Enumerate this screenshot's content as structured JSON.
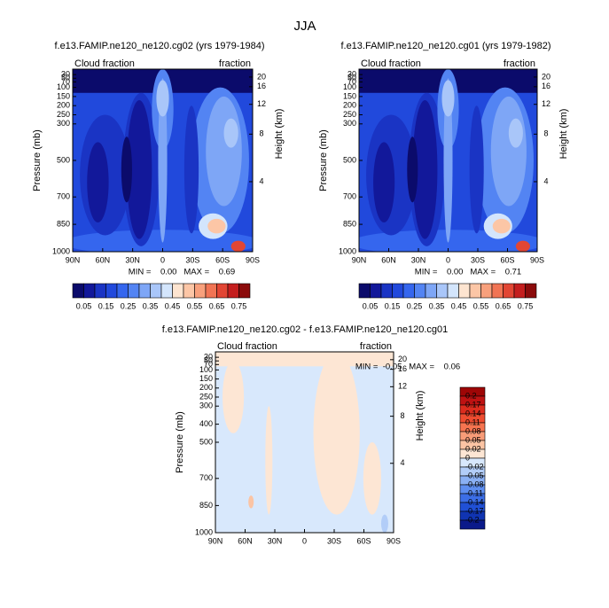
{
  "title": "JJA",
  "chart_data": [
    {
      "type": "contour",
      "title": "f.e13.FAMIP.ne120_ne120.cg02 (yrs 1979-1984)",
      "left_label": "Cloud fraction",
      "right_label": "fraction",
      "ylabel": "Pressure (mb)",
      "y2label": "Height (km)",
      "xlim": [
        90,
        -90
      ],
      "xticks": [
        {
          "value": 90,
          "label": "90N"
        },
        {
          "value": 60,
          "label": "60N"
        },
        {
          "value": 30,
          "label": "30N"
        },
        0,
        {
          "value": -30,
          "label": "30S"
        },
        {
          "value": -60,
          "label": "60S"
        },
        {
          "value": -90,
          "label": "90S"
        }
      ],
      "ylim": [
        1000,
        0
      ],
      "yticks": [
        30,
        50,
        70,
        100,
        150,
        200,
        250,
        300,
        500,
        700,
        850,
        1000
      ],
      "y2ticks": [
        4,
        8,
        12,
        16,
        20
      ],
      "stats": "MIN =    0.00   MAX =    0.69",
      "colorbar": {
        "orientation": "horizontal",
        "lim": [
          0,
          0.8
        ],
        "colors": [
          "#0b0b6b",
          "#12189a",
          "#1a34c4",
          "#2149dc",
          "#3566ee",
          "#5384f3",
          "#7ea6f6",
          "#a9c6f9",
          "#d3e5fc",
          "#fde4d0",
          "#fcc6a6",
          "#f8a07c",
          "#f17454",
          "#e24634",
          "#c41e1e",
          "#8b0b0b"
        ],
        "ticks": [
          0.05,
          0.15,
          0.25,
          0.35,
          0.45,
          0.55,
          0.65,
          0.75
        ]
      }
    },
    {
      "type": "contour",
      "title": "f.e13.FAMIP.ne120_ne120.cg01 (yrs 1979-1982)",
      "left_label": "Cloud fraction",
      "right_label": "fraction",
      "ylabel": "Pressure (mb)",
      "y2label": "Height (km)",
      "xlim": [
        90,
        -90
      ],
      "xticks": [
        {
          "value": 90,
          "label": "90N"
        },
        {
          "value": 60,
          "label": "60N"
        },
        {
          "value": 30,
          "label": "30N"
        },
        0,
        {
          "value": -30,
          "label": "30S"
        },
        {
          "value": -60,
          "label": "60S"
        },
        {
          "value": -90,
          "label": "90S"
        }
      ],
      "ylim": [
        1000,
        0
      ],
      "yticks": [
        30,
        50,
        70,
        100,
        150,
        200,
        250,
        300,
        500,
        700,
        850,
        1000
      ],
      "y2ticks": [
        4,
        8,
        12,
        16,
        20
      ],
      "stats": "MIN =    0.00   MAX =    0.71",
      "colorbar": {
        "orientation": "horizontal",
        "lim": [
          0,
          0.8
        ],
        "colors": [
          "#0b0b6b",
          "#12189a",
          "#1a34c4",
          "#2149dc",
          "#3566ee",
          "#5384f3",
          "#7ea6f6",
          "#a9c6f9",
          "#d3e5fc",
          "#fde4d0",
          "#fcc6a6",
          "#f8a07c",
          "#f17454",
          "#e24634",
          "#c41e1e",
          "#8b0b0b"
        ],
        "ticks": [
          0.05,
          0.15,
          0.25,
          0.35,
          0.45,
          0.55,
          0.65,
          0.75
        ]
      }
    },
    {
      "type": "contour",
      "title": "f.e13.FAMIP.ne120_ne120.cg02 - f.e13.FAMIP.ne120_ne120.cg01",
      "left_label": "Cloud fraction",
      "right_label": "fraction",
      "ylabel": "Pressure (mb)",
      "y2label": "Height (km)",
      "xlim": [
        90,
        -90
      ],
      "xticks": [
        {
          "value": 90,
          "label": "90N"
        },
        {
          "value": 60,
          "label": "60N"
        },
        {
          "value": 30,
          "label": "30N"
        },
        0,
        {
          "value": -30,
          "label": "30S"
        },
        {
          "value": -60,
          "label": "60S"
        },
        {
          "value": -90,
          "label": "90S"
        }
      ],
      "ylim": [
        1000,
        0
      ],
      "yticks": [
        30,
        50,
        70,
        100,
        150,
        200,
        250,
        300,
        400,
        500,
        700,
        850,
        1000
      ],
      "y2ticks": [
        4,
        8,
        12,
        16,
        20
      ],
      "stats": "MIN =  -0.05   MAX =    0.06",
      "colorbar": {
        "orientation": "vertical",
        "colors": [
          "#9e0606",
          "#be1212",
          "#dc2c1e",
          "#ee4c30",
          "#f67450",
          "#f89c78",
          "#fbc4a4",
          "#fde6d4",
          "#d8e8fc",
          "#b2cdf8",
          "#8ab0f4",
          "#5e8ef0",
          "#3c6ee6",
          "#2050d6",
          "#1034b2",
          "#0a1a8a"
        ],
        "levels": [
          0.2,
          0.17,
          0.14,
          0.11,
          0.08,
          0.05,
          0.02,
          0,
          -0.02,
          -0.05,
          -0.08,
          -0.11,
          -0.14,
          -0.17,
          -0.2
        ]
      }
    }
  ]
}
